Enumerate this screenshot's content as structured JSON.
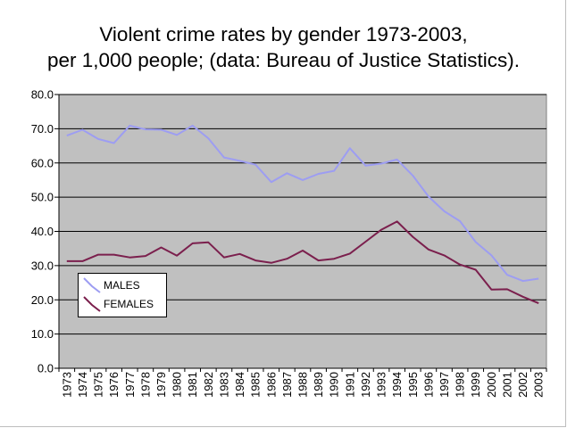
{
  "title_lines": [
    "Violent crime rates by gender 1973-2003,",
    "per 1,000 people; (data: Bureau of Justice Statistics)."
  ],
  "colors": {
    "plot_background": "#c0c0c0",
    "grid": "#000000",
    "males": "#9d9df2",
    "females": "#7b1f4d"
  },
  "chart_data": {
    "type": "line",
    "title": "Violent crime rates by gender 1973-2003, per 1,000 people; (data: Bureau of Justice Statistics).",
    "xlabel": "",
    "ylabel": "",
    "ylim": [
      0,
      80
    ],
    "yticks": [
      "0.0",
      "10.0",
      "20.0",
      "30.0",
      "40.0",
      "50.0",
      "60.0",
      "70.0",
      "80.0"
    ],
    "grid": true,
    "legend_position": "lower-left",
    "categories": [
      "1973",
      "1974",
      "1975",
      "1976",
      "1977",
      "1978",
      "1979",
      "1980",
      "1981",
      "1982",
      "1983",
      "1984",
      "1985",
      "1986",
      "1987",
      "1988",
      "1989",
      "1990",
      "1991",
      "1992",
      "1993",
      "1994",
      "1995",
      "1996",
      "1997",
      "1998",
      "1999",
      "2000",
      "2001",
      "2002",
      "2003"
    ],
    "series": [
      {
        "name": "MALES",
        "values": [
          68.0,
          69.7,
          67.0,
          65.8,
          70.9,
          69.8,
          69.7,
          68.2,
          70.9,
          67.2,
          61.6,
          60.6,
          59.5,
          54.4,
          57.0,
          55.0,
          56.8,
          57.7,
          64.3,
          59.2,
          59.8,
          61.0,
          56.3,
          50.2,
          45.9,
          43.0,
          36.9,
          33.0,
          27.3,
          25.5,
          26.2
        ]
      },
      {
        "name": "FEMALES",
        "values": [
          31.3,
          31.3,
          33.2,
          33.2,
          32.4,
          32.8,
          35.3,
          32.9,
          36.5,
          36.8,
          32.4,
          33.4,
          31.5,
          30.8,
          32.0,
          34.4,
          31.5,
          32.0,
          33.5,
          37.0,
          40.5,
          42.9,
          38.4,
          34.7,
          33.0,
          30.3,
          28.8,
          23.0,
          23.1,
          20.9,
          19.0
        ]
      }
    ]
  }
}
